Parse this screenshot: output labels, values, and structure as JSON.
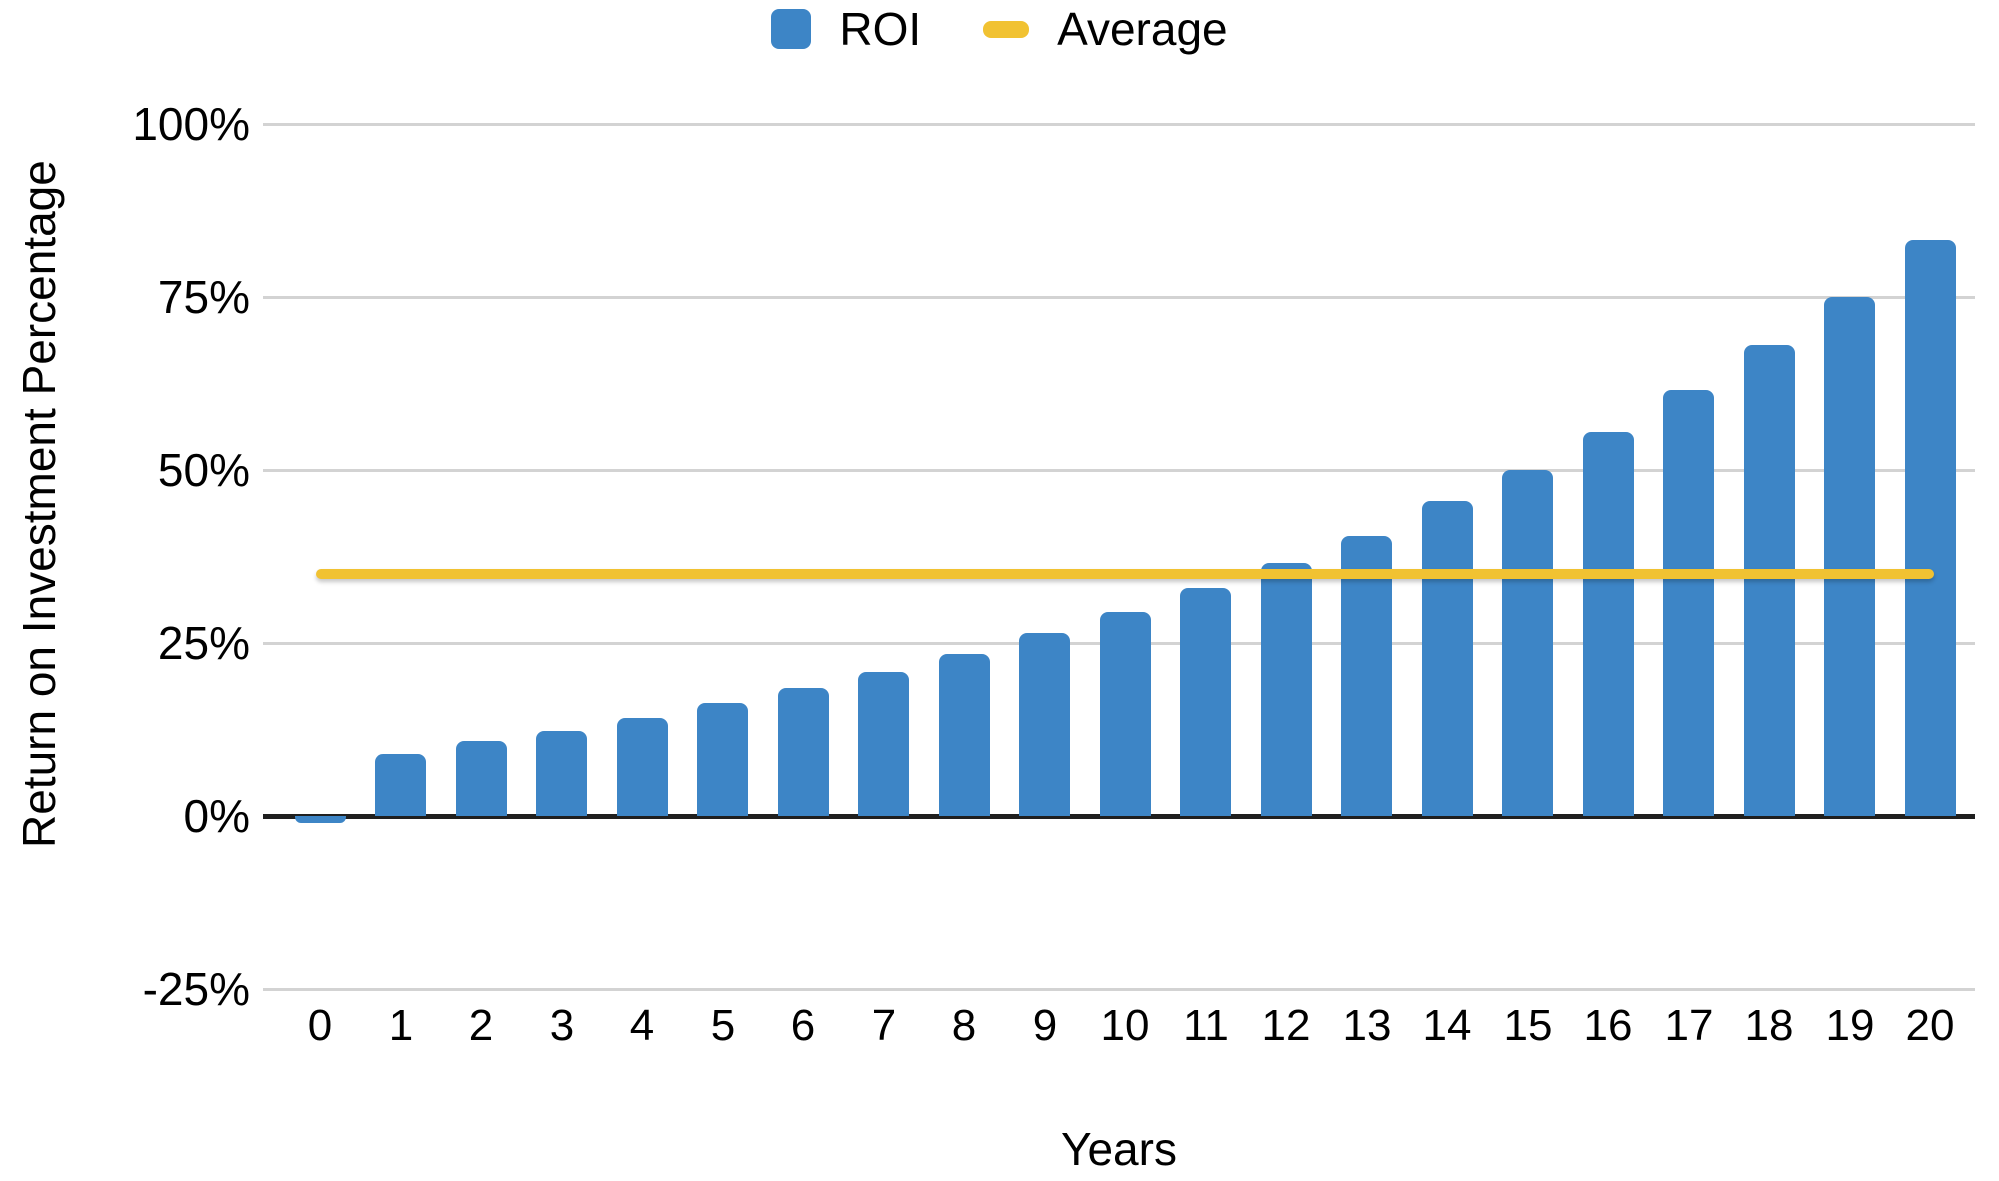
{
  "chart_data": {
    "type": "bar",
    "title": "",
    "xlabel": "Years",
    "ylabel": "Return on Investment Percentage",
    "categories": [
      0,
      1,
      2,
      3,
      4,
      5,
      6,
      7,
      8,
      9,
      10,
      11,
      12,
      13,
      14,
      15,
      16,
      17,
      18,
      19,
      20
    ],
    "series": [
      {
        "name": "ROI",
        "type": "bar",
        "color": "#3d85c6",
        "values": [
          -1,
          9,
          10.8,
          12.3,
          14.2,
          16.3,
          18.5,
          20.8,
          23.4,
          26.4,
          29.5,
          33,
          36.6,
          40.5,
          45.5,
          50,
          55.5,
          61.5,
          68,
          75,
          83.2
        ]
      },
      {
        "name": "Average",
        "type": "line",
        "color": "#f1c232",
        "constant_value": 35
      }
    ],
    "ylim": [
      -25,
      100
    ],
    "y_tick_values": [
      100,
      75,
      50,
      25,
      0,
      -25
    ],
    "y_tick_labels": [
      "100%",
      "75%",
      "50%",
      "25%",
      "0%",
      "-25%"
    ],
    "grid": true,
    "legend_position": "top-center"
  },
  "legend": {
    "roi_label": "ROI",
    "average_label": "Average"
  },
  "axes": {
    "x_title": "Years",
    "y_title": "Return on Investment Percentage"
  },
  "colors": {
    "bar": "#3d85c6",
    "average_line": "#f1c232",
    "gridline": "#d3d3d3",
    "zero_axis": "#1f1f1f",
    "text": "#000000",
    "background": "#ffffff"
  }
}
